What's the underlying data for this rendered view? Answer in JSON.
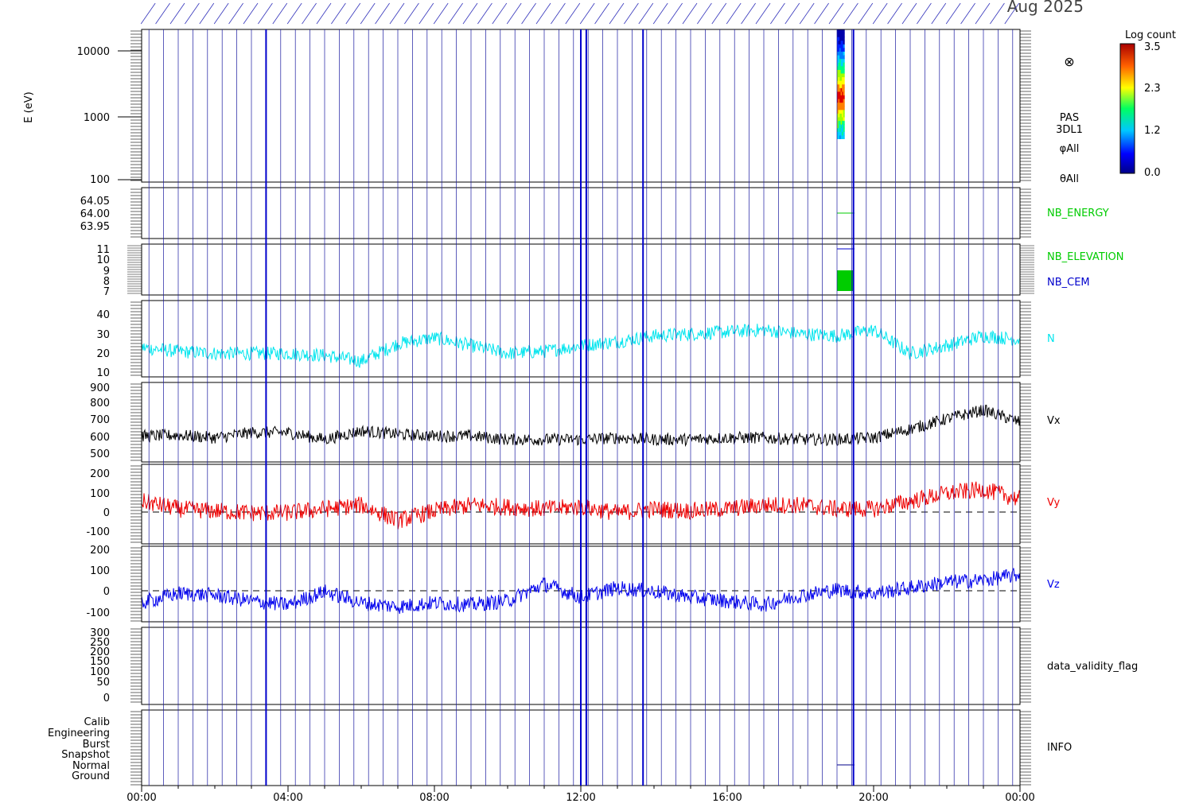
{
  "header": {
    "date_label": "Aug 2025"
  },
  "colorbar": {
    "title": "Log count",
    "ticks": [
      "3.5",
      "2.3",
      "1.2",
      "0.0"
    ]
  },
  "x_axis": {
    "ticks": [
      "00:00",
      "04:00",
      "08:00",
      "12:00",
      "16:00",
      "20:00",
      "00:00"
    ]
  },
  "chart_data": [
    {
      "type": "heatmap",
      "ylabel": "E (eV)",
      "yscale": "log",
      "ylim": [
        100,
        20000
      ],
      "yticks": [
        "100",
        "1000",
        "10000"
      ],
      "labels": [
        "PAS",
        "3DL1",
        "φAll",
        "θAll"
      ],
      "symbol": "⊗",
      "data_time_range": [
        "19:00",
        "19:20"
      ],
      "peak_energy": 1800,
      "energy_extent": [
        450,
        20000
      ]
    },
    {
      "type": "line",
      "series": [
        {
          "name": "NB_ENERGY",
          "color": "#00cc00"
        }
      ],
      "yticks": [
        "64.05",
        "64.00",
        "63.95"
      ],
      "value": 64.0
    },
    {
      "type": "bar",
      "series": [
        {
          "name": "NB_ELEVATION",
          "color": "#00cc00"
        },
        {
          "name": "NB_CEM",
          "color": "#0000cc"
        }
      ],
      "yticks": [
        "11",
        "10",
        "9",
        "8",
        "7"
      ]
    },
    {
      "type": "line",
      "series": [
        {
          "name": "N",
          "color": "#00e5ee"
        }
      ],
      "yticks": [
        "40",
        "30",
        "20",
        "10"
      ],
      "ylim": [
        8,
        47
      ],
      "x_hours": [
        0,
        1,
        2,
        3,
        4,
        5,
        6,
        7,
        8,
        9,
        10,
        11,
        12,
        13,
        14,
        15,
        16,
        17,
        18,
        19,
        20,
        21,
        22,
        23,
        24
      ],
      "values": [
        23,
        21,
        20,
        20,
        20,
        19,
        16,
        25,
        28,
        24,
        20,
        21,
        24,
        26,
        29,
        30,
        31,
        32,
        30,
        29,
        32,
        20,
        24,
        29,
        27
      ]
    },
    {
      "type": "line",
      "series": [
        {
          "name": "Vx",
          "color": "#000000"
        }
      ],
      "yticks": [
        "900",
        "800",
        "700",
        "600",
        "500"
      ],
      "ylim": [
        470,
        930
      ],
      "x_hours": [
        0,
        1,
        2,
        3,
        4,
        5,
        6,
        7,
        8,
        9,
        10,
        11,
        12,
        13,
        14,
        15,
        16,
        17,
        18,
        19,
        20,
        21,
        22,
        23,
        24
      ],
      "values": [
        620,
        625,
        610,
        640,
        640,
        600,
        650,
        630,
        620,
        620,
        600,
        600,
        600,
        610,
        600,
        600,
        610,
        610,
        600,
        600,
        610,
        660,
        720,
        770,
        700
      ]
    },
    {
      "type": "line",
      "series": [
        {
          "name": "Vy",
          "color": "#ee0000"
        }
      ],
      "yticks": [
        "200",
        "100",
        "0",
        "-100"
      ],
      "ylim": [
        -160,
        250
      ],
      "x_hours": [
        0,
        1,
        2,
        3,
        4,
        5,
        6,
        7,
        8,
        9,
        10,
        11,
        12,
        13,
        14,
        15,
        16,
        17,
        18,
        19,
        20,
        21,
        22,
        23,
        24
      ],
      "values": [
        60,
        20,
        10,
        0,
        0,
        20,
        40,
        -40,
        10,
        40,
        30,
        20,
        30,
        0,
        20,
        10,
        20,
        40,
        40,
        20,
        20,
        60,
        100,
        120,
        70
      ]
    },
    {
      "type": "line",
      "series": [
        {
          "name": "Vz",
          "color": "#0000ee"
        }
      ],
      "yticks": [
        "200",
        "100",
        "0",
        "-100"
      ],
      "ylim": [
        -150,
        250
      ],
      "x_hours": [
        0,
        1,
        2,
        3,
        4,
        5,
        6,
        7,
        8,
        9,
        10,
        11,
        12,
        13,
        14,
        15,
        16,
        17,
        18,
        19,
        20,
        21,
        22,
        23,
        24
      ],
      "values": [
        -50,
        0,
        -10,
        -40,
        -60,
        10,
        -50,
        -70,
        -50,
        -60,
        -40,
        50,
        -20,
        30,
        10,
        -20,
        -40,
        -60,
        -10,
        20,
        0,
        30,
        60,
        70,
        100
      ]
    },
    {
      "type": "line",
      "series": [
        {
          "name": "data_validity_flag"
        }
      ],
      "yticks": [
        "300",
        "250",
        "200",
        "150",
        "100",
        "50",
        "0"
      ]
    },
    {
      "type": "line",
      "series": [
        {
          "name": "INFO"
        }
      ],
      "yticks": [
        "Calib",
        "Engineering",
        "Burst",
        "Snapshot",
        "Normal",
        "Ground"
      ],
      "value_level": "Normal"
    }
  ]
}
